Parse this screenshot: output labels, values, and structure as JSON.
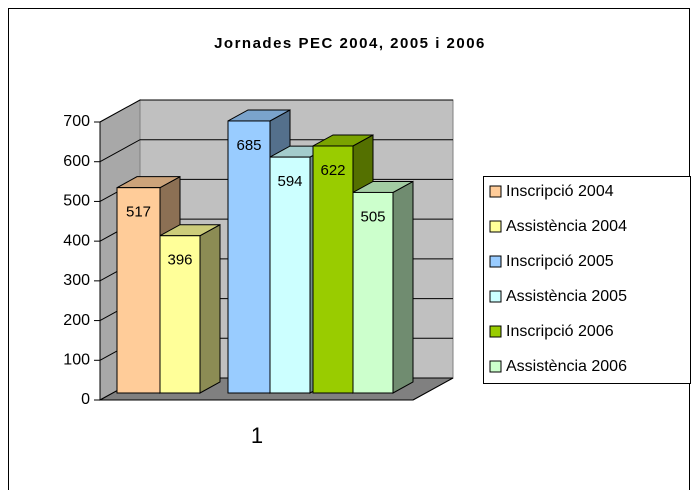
{
  "chart_data": {
    "type": "bar3d",
    "title": "Jornades PEC 2004, 2005 i 2006",
    "categories": [
      "1"
    ],
    "series": [
      {
        "name": "Inscripció 2004",
        "color": "#FFCC99",
        "values": [
          517
        ]
      },
      {
        "name": "Assistència 2004",
        "color": "#FFFF99",
        "values": [
          396
        ]
      },
      {
        "name": "Inscripció 2005",
        "color": "#99CCFF",
        "values": [
          685
        ]
      },
      {
        "name": "Assistència 2005",
        "color": "#CCFFFF",
        "values": [
          594
        ]
      },
      {
        "name": "Inscripció 2006",
        "color": "#99CC00",
        "values": [
          622
        ]
      },
      {
        "name": "Assistència 2006",
        "color": "#CCFFCC",
        "values": [
          505
        ]
      }
    ],
    "ylim": [
      0,
      700
    ],
    "yticks": [
      0,
      100,
      200,
      300,
      400,
      500,
      600,
      700
    ],
    "grid": true,
    "legend": "right"
  }
}
